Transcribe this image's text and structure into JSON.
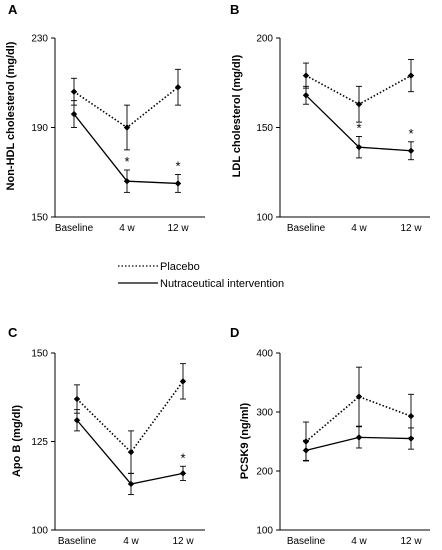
{
  "legend": [
    {
      "name": "Placebo",
      "style": "dotted"
    },
    {
      "name": "Nutraceutical intervention",
      "style": "solid"
    }
  ],
  "chart_data": [
    {
      "panel": "A",
      "type": "line",
      "ylabel": "Non-HDL cholesterol (mg/dl)",
      "categories": [
        "Baseline",
        "4 w",
        "12 w"
      ],
      "ylim": [
        150,
        230
      ],
      "yticks": [
        150,
        190,
        230
      ],
      "series": [
        {
          "name": "Placebo",
          "values": [
            206,
            190,
            208
          ],
          "errors": [
            6,
            10,
            8
          ]
        },
        {
          "name": "Nutraceutical intervention",
          "values": [
            196,
            166,
            165
          ],
          "errors": [
            6,
            5,
            4
          ]
        }
      ],
      "annotations": [
        {
          "series": 1,
          "index": 1,
          "text": "*"
        },
        {
          "series": 1,
          "index": 2,
          "text": "*"
        }
      ]
    },
    {
      "panel": "B",
      "type": "line",
      "ylabel": "LDL cholesterol (mg/dl)",
      "categories": [
        "Baseline",
        "4 w",
        "12 w"
      ],
      "ylim": [
        100,
        200
      ],
      "yticks": [
        100,
        150,
        200
      ],
      "series": [
        {
          "name": "Placebo",
          "values": [
            179,
            163,
            179
          ],
          "errors": [
            7,
            10,
            9
          ]
        },
        {
          "name": "Nutraceutical intervention",
          "values": [
            168,
            139,
            137
          ],
          "errors": [
            5,
            6,
            5
          ]
        }
      ],
      "annotations": [
        {
          "series": 1,
          "index": 1,
          "text": "*"
        },
        {
          "series": 1,
          "index": 2,
          "text": "*"
        }
      ]
    },
    {
      "panel": "C",
      "type": "line",
      "ylabel": "Apo B (mg/dl)",
      "categories": [
        "Baseline",
        "4 w",
        "12 w"
      ],
      "ylim": [
        100,
        150
      ],
      "yticks": [
        100,
        125,
        150
      ],
      "series": [
        {
          "name": "Placebo",
          "values": [
            137,
            122,
            142
          ],
          "errors": [
            4,
            6,
            5
          ]
        },
        {
          "name": "Nutraceutical intervention",
          "values": [
            131,
            113,
            116
          ],
          "errors": [
            3,
            3,
            2
          ]
        }
      ],
      "annotations": [
        {
          "series": 1,
          "index": 2,
          "text": "*"
        }
      ]
    },
    {
      "panel": "D",
      "type": "line",
      "ylabel": "PCSK9 (ng/ml)",
      "categories": [
        "Baseline",
        "4 w",
        "12 w"
      ],
      "ylim": [
        100,
        400
      ],
      "yticks": [
        100,
        200,
        300,
        400
      ],
      "series": [
        {
          "name": "Placebo",
          "values": [
            250,
            326,
            293
          ],
          "errors": [
            33,
            50,
            37
          ]
        },
        {
          "name": "Nutraceutical intervention",
          "values": [
            235,
            257,
            255
          ],
          "errors": [
            17,
            18,
            18
          ]
        }
      ],
      "annotations": []
    }
  ]
}
